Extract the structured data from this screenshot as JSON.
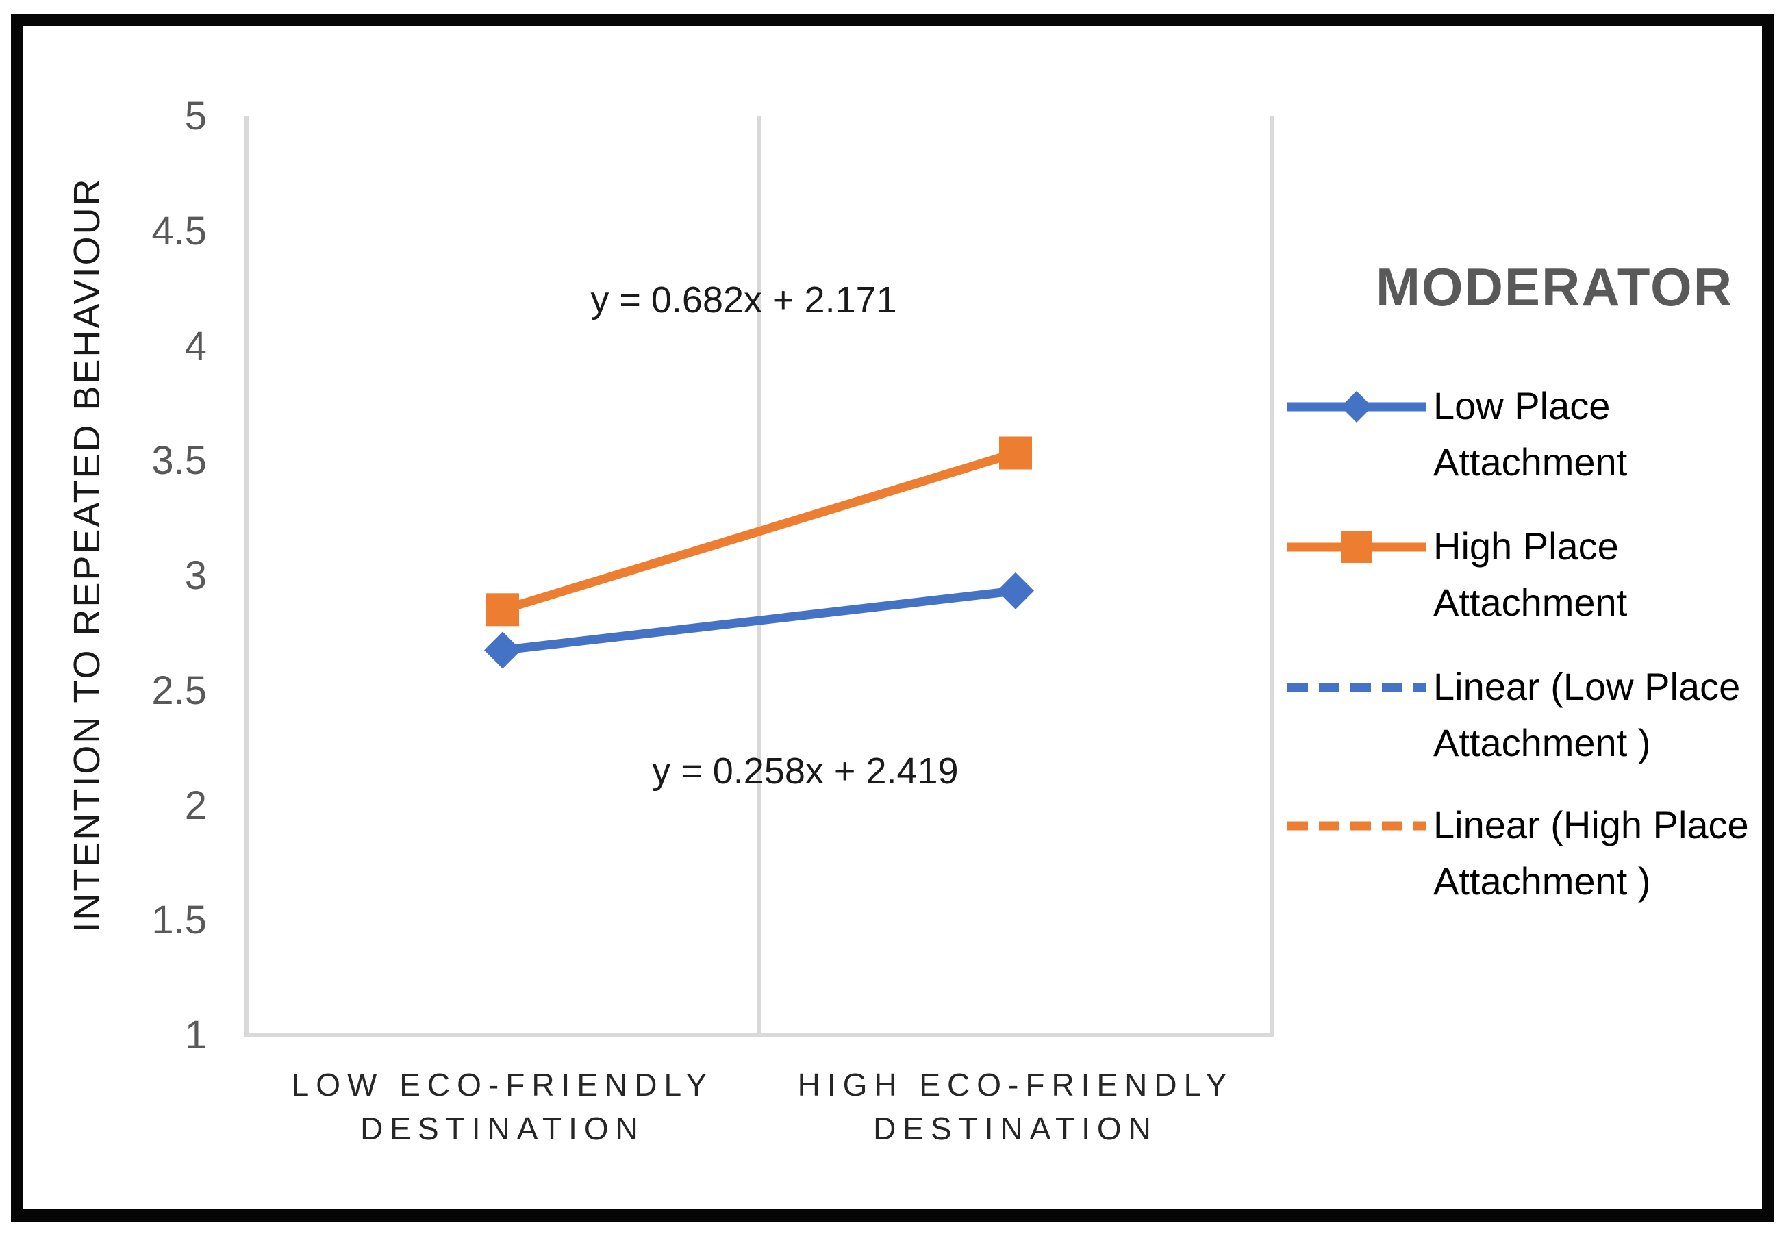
{
  "chart_data": {
    "type": "line",
    "categories": [
      "LOW ECO-FRIENDLY DESTINATION",
      "HIGH ECO-FRIENDLY DESTINATION"
    ],
    "x_tick_lines": [
      [
        "LOW ECO-FRIENDLY",
        "DESTINATION"
      ],
      [
        "HIGH ECO-FRIENDLY",
        "DESTINATION"
      ]
    ],
    "ylabel": "INTENTION TO REPEATED BEHAVIOUR",
    "xlabel": "",
    "title": "",
    "ylim": [
      1,
      5
    ],
    "yticks": [
      5,
      4.5,
      4,
      3.5,
      3,
      2.5,
      2,
      1.5,
      1
    ],
    "grid": "vertical-category-boundaries",
    "series": [
      {
        "name": "Low Place Attachment",
        "values": [
          2.677,
          2.935
        ],
        "color": "#4472C4",
        "marker": "diamond"
      },
      {
        "name": "High Place Attachment",
        "values": [
          2.853,
          3.535
        ],
        "color": "#ED7D31",
        "marker": "square"
      }
    ],
    "annotations": [
      {
        "text": "y = 0.682x + 2.171",
        "x": 1.47,
        "y": 4.2
      },
      {
        "text": "y = 0.258x + 2.419",
        "x": 1.59,
        "y": 2.15
      }
    ],
    "legend": {
      "title": "MODERATOR",
      "position": "right",
      "entries": [
        {
          "label": "Low Place Attachment",
          "style": "solid-diamond",
          "color": "#4472C4"
        },
        {
          "label": "High Place Attachment",
          "style": "solid-square",
          "color": "#ED7D31"
        },
        {
          "label": "Linear (Low Place Attachment )",
          "style": "dashed",
          "color": "#4472C4"
        },
        {
          "label": "Linear (High Place Attachment )",
          "style": "dashed",
          "color": "#ED7D31"
        }
      ]
    },
    "colors": {
      "gridline": "#D9D9D9",
      "tick_label": "#595959",
      "legend_title": "#595959",
      "text": "#1a1a1a",
      "frame_border": "#060606",
      "background": "#ffffff"
    }
  }
}
